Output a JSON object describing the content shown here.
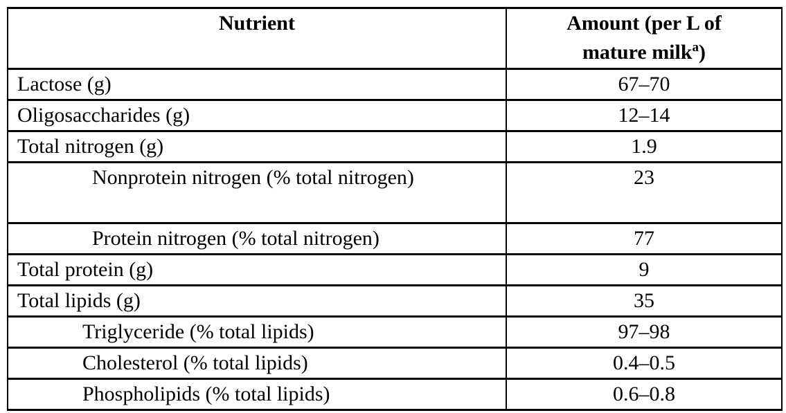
{
  "page": {
    "background_color": "#ffffff",
    "border_color": "#000000",
    "text_color": "#000000"
  },
  "table": {
    "header": {
      "nutrient_col": "Nutrient",
      "amount_col_line1": "Amount (per L of",
      "amount_col_line2_text": "mature milk",
      "amount_col_footnote_marker": "a",
      "amount_col_line2_close": ")"
    },
    "rows": [
      {
        "nutrient": "Lactose (g)",
        "amount": "67–70",
        "level": "top"
      },
      {
        "nutrient": "Oligosaccharides (g)",
        "amount": "12–14",
        "level": "top"
      },
      {
        "nutrient": "Total nitrogen (g)",
        "amount": "1.9",
        "level": "top"
      },
      {
        "nutrient": "Nonprotein nitrogen (% total nitrogen)",
        "amount": "23",
        "level": "sub"
      },
      {
        "nutrient": "Protein nitrogen (% total nitrogen)",
        "amount": "77",
        "level": "sub"
      },
      {
        "nutrient": "Total protein (g)",
        "amount": "9",
        "level": "top"
      },
      {
        "nutrient": "Total lipids (g)",
        "amount": "35",
        "level": "top"
      },
      {
        "nutrient": "Triglyceride (% total lipids)",
        "amount": "97–98",
        "level": "sub"
      },
      {
        "nutrient": "Cholesterol (% total lipids)",
        "amount": "0.4–0.5",
        "level": "sub"
      },
      {
        "nutrient": "Phospholipids (% total lipids)",
        "amount": "0.6–0.8",
        "level": "sub"
      }
    ]
  }
}
